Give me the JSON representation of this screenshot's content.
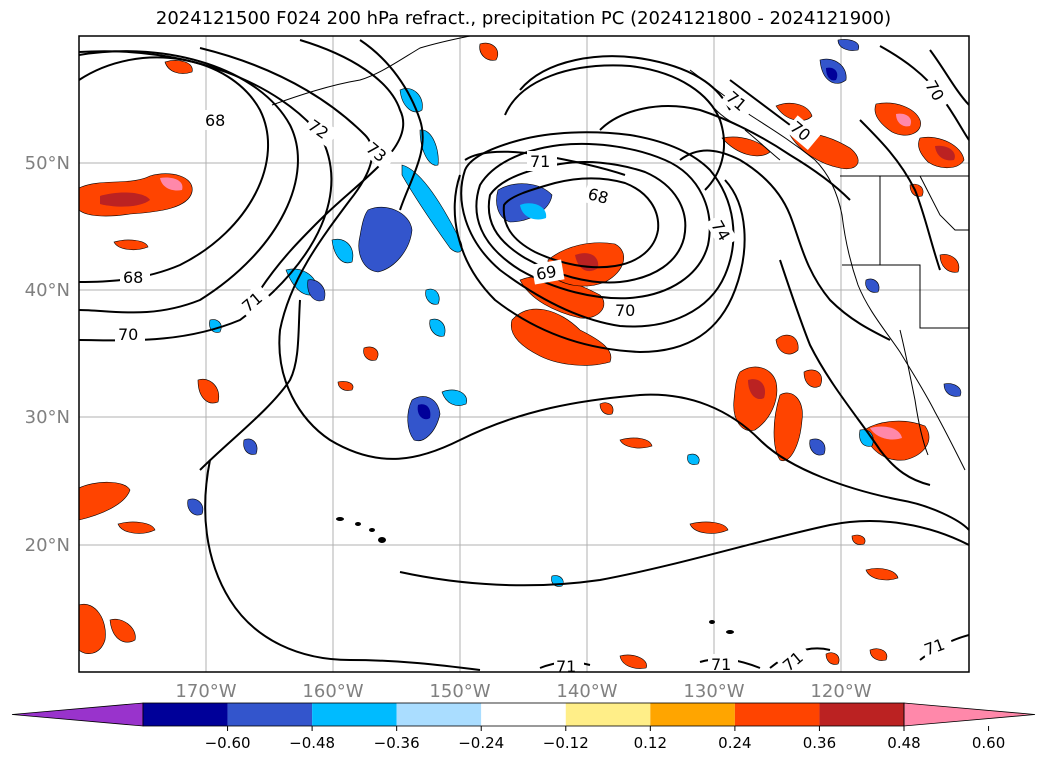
{
  "title": "2024121500 F024 200 hPa refract., precipitation PC (2024121800 - 2024121900)",
  "map": {
    "lon_range": [
      -180,
      -110
    ],
    "lat_range": [
      10,
      60
    ],
    "lon_ticks": [
      "170°W",
      "160°W",
      "150°W",
      "140°W",
      "130°W",
      "120°W"
    ],
    "lat_ticks": [
      "50°N",
      "40°N",
      "30°N",
      "20°N"
    ],
    "gridlines": true
  },
  "contour_labels": [
    "68",
    "72",
    "73",
    "71",
    "68",
    "69",
    "70",
    "74",
    "71",
    "70",
    "70",
    "68",
    "70",
    "71",
    "71",
    "71",
    "71",
    "71"
  ],
  "colorbar": {
    "orientation": "horizontal",
    "extend": "both",
    "colors": [
      "#9933cc",
      "#000099",
      "#3355cc",
      "#00bbff",
      "#aaddff",
      "#ffffff",
      "#ffee88",
      "#ffa500",
      "#ff4400",
      "#bb2222",
      "#ff88aa"
    ],
    "tick_labels": [
      "−0.60",
      "−0.48",
      "−0.36",
      "−0.24",
      "−0.12",
      "0.12",
      "0.24",
      "0.36",
      "0.48",
      "0.60"
    ]
  }
}
